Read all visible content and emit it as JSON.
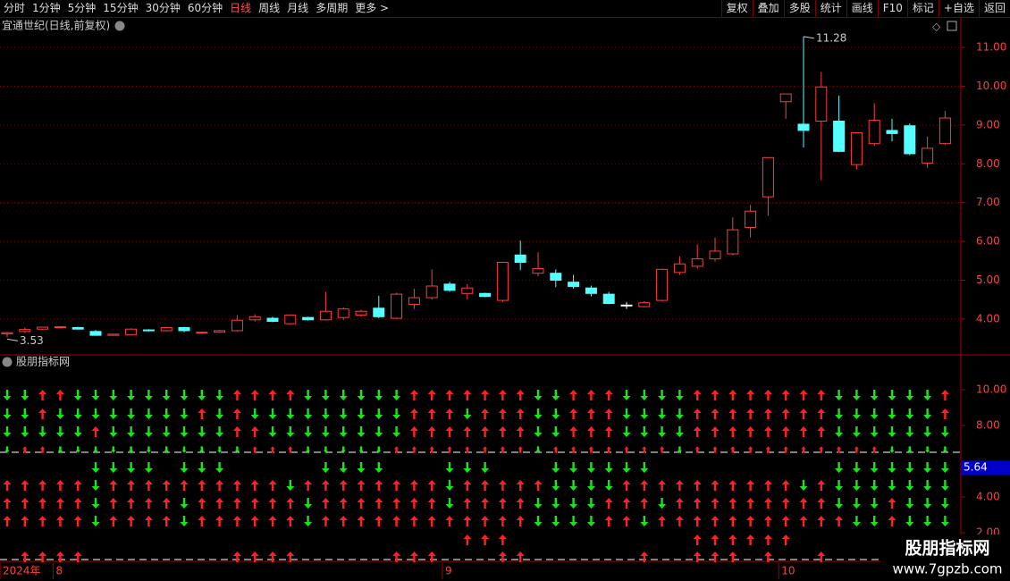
{
  "toolbar": {
    "left": [
      "分时",
      "1分钟",
      "5分钟",
      "15分钟",
      "30分钟",
      "60分钟",
      "日线",
      "周线",
      "月线",
      "多周期",
      "更多 >"
    ],
    "selected": 6,
    "right": [
      "复权",
      "叠加",
      "多股",
      "统计",
      "画线",
      "F10",
      "标记",
      "+自选",
      "返回"
    ]
  },
  "chart_data": [
    {
      "type": "candlestick",
      "title": "宜通世纪(日线,前复权)",
      "categories": [
        "2024年",
        null,
        null,
        "8",
        null,
        null,
        null,
        null,
        null,
        null,
        null,
        null,
        null,
        null,
        null,
        null,
        null,
        null,
        null,
        null,
        null,
        null,
        null,
        null,
        null,
        "9",
        null,
        null,
        null,
        null,
        null,
        null,
        null,
        null,
        null,
        null,
        null,
        null,
        null,
        null,
        null,
        null,
        null,
        null,
        "10",
        null,
        null,
        null,
        null,
        null,
        null,
        null,
        null,
        null
      ],
      "open": [
        3.62,
        3.68,
        3.74,
        3.79,
        3.78,
        3.68,
        3.58,
        3.6,
        3.72,
        3.7,
        3.78,
        3.64,
        3.66,
        3.7,
        3.98,
        4.02,
        3.88,
        4.04,
        3.98,
        4.04,
        4.1,
        4.28,
        4.02,
        4.38,
        4.55,
        4.9,
        4.66,
        4.66,
        4.48,
        5.65,
        5.18,
        5.18,
        4.95,
        4.8,
        4.64,
        4.36,
        4.32,
        4.48,
        5.2,
        5.36,
        5.55,
        5.68,
        6.36,
        7.15,
        9.6,
        9.02,
        9.1,
        9.1,
        7.98,
        8.52,
        8.86,
        8.98,
        8.02,
        8.52
      ],
      "high": [
        3.66,
        3.78,
        3.8,
        3.81,
        3.8,
        3.72,
        3.62,
        3.76,
        3.74,
        3.8,
        3.8,
        3.68,
        3.72,
        4.1,
        4.12,
        4.06,
        4.12,
        4.06,
        4.7,
        4.3,
        4.24,
        4.6,
        4.68,
        4.78,
        5.28,
        4.96,
        4.9,
        4.68,
        5.48,
        6.02,
        5.72,
        5.28,
        5.14,
        4.86,
        4.7,
        4.44,
        4.46,
        5.3,
        5.62,
        5.92,
        6.1,
        6.62,
        6.94,
        8.16,
        9.8,
        11.28,
        10.36,
        9.76,
        8.8,
        9.56,
        9.16,
        9.04,
        8.7,
        9.36
      ],
      "low": [
        3.53,
        3.64,
        3.72,
        3.77,
        3.74,
        3.58,
        3.57,
        3.58,
        3.68,
        3.68,
        3.66,
        3.62,
        3.64,
        3.68,
        3.94,
        3.92,
        3.86,
        3.96,
        3.96,
        3.98,
        4.06,
        4.02,
        4.0,
        4.26,
        4.5,
        4.7,
        4.5,
        4.56,
        4.44,
        5.26,
        5.1,
        4.82,
        4.78,
        4.58,
        4.38,
        4.26,
        4.3,
        4.46,
        5.14,
        5.3,
        5.48,
        5.64,
        6.1,
        6.66,
        9.16,
        8.42,
        7.58,
        8.3,
        7.86,
        8.46,
        8.58,
        8.22,
        7.9,
        8.48
      ],
      "close": [
        3.65,
        3.73,
        3.79,
        3.8,
        3.74,
        3.58,
        3.61,
        3.74,
        3.7,
        3.78,
        3.7,
        3.66,
        3.7,
        3.97,
        4.06,
        3.94,
        4.1,
        3.98,
        4.2,
        4.26,
        4.2,
        4.06,
        4.64,
        4.55,
        4.85,
        4.74,
        4.8,
        4.58,
        5.46,
        5.46,
        5.3,
        5.0,
        4.84,
        4.66,
        4.4,
        4.36,
        4.42,
        5.28,
        5.42,
        5.55,
        5.75,
        6.3,
        6.78,
        8.16,
        9.8,
        8.86,
        9.98,
        8.32,
        8.8,
        9.12,
        8.78,
        8.26,
        8.4,
        9.18
      ],
      "up_color": "#ff3c3c",
      "down_color": "#54ffff",
      "flat_color": "#ffffff",
      "annotations": {
        "max": "11.28",
        "min": "3.53"
      },
      "ylim": [
        3.1,
        11.76
      ],
      "yticks": [
        {
          "value": 4,
          "label": "4.00"
        },
        {
          "value": 5,
          "label": "5.00"
        },
        {
          "value": 6,
          "label": "6.00"
        },
        {
          "value": 7,
          "label": "7.00"
        },
        {
          "value": 8,
          "label": "8.00"
        },
        {
          "value": 9,
          "label": "9.00"
        },
        {
          "value": 10,
          "label": "10.00"
        },
        {
          "value": 11,
          "label": "11.00"
        }
      ],
      "grid": true
    },
    {
      "type": "signal-grid",
      "title": "股朋指标网",
      "up_color": "#ff2020",
      "down_color": "#19e619",
      "rows": [
        [
          -1,
          -1,
          1,
          1,
          -1,
          -1,
          -1,
          -1,
          -1,
          -1,
          -1,
          -1,
          -1,
          1,
          1,
          1,
          1,
          -1,
          -1,
          -1,
          -1,
          -1,
          -1,
          1,
          1,
          1,
          1,
          1,
          1,
          1,
          -1,
          -1,
          1,
          1,
          1,
          -1,
          -1,
          -1,
          -1,
          1,
          1,
          1,
          1,
          1,
          1,
          1,
          1,
          -1,
          -1,
          -1,
          -1,
          -1,
          -1,
          1
        ],
        [
          -1,
          -1,
          1,
          -1,
          -1,
          -1,
          -1,
          -1,
          -1,
          -1,
          -1,
          1,
          -1,
          1,
          -1,
          -1,
          -1,
          -1,
          -1,
          -1,
          -1,
          -1,
          -1,
          1,
          1,
          1,
          -1,
          1,
          1,
          1,
          -1,
          -1,
          1,
          1,
          1,
          -1,
          -1,
          -1,
          -1,
          1,
          1,
          1,
          1,
          1,
          1,
          1,
          1,
          -1,
          -1,
          -1,
          -1,
          -1,
          -1,
          1
        ],
        [
          -1,
          -1,
          -1,
          -1,
          -1,
          1,
          -1,
          -1,
          -1,
          -1,
          -1,
          -1,
          -1,
          1,
          1,
          -1,
          -1,
          -1,
          -1,
          -1,
          -1,
          -1,
          -1,
          1,
          1,
          1,
          1,
          1,
          1,
          1,
          -1,
          -1,
          1,
          1,
          1,
          -1,
          -1,
          -1,
          -1,
          1,
          1,
          1,
          1,
          1,
          1,
          1,
          1,
          -1,
          -1,
          -1,
          -1,
          -1,
          -1,
          -1
        ],
        [
          -1,
          1,
          1,
          -1,
          -1,
          -1,
          -1,
          -1,
          -1,
          -1,
          -1,
          -1,
          -1,
          -1,
          1,
          1,
          1,
          -1,
          -1,
          -1,
          -1,
          -1,
          1,
          1,
          1,
          1,
          1,
          1,
          1,
          1,
          -1,
          1,
          1,
          1,
          1,
          1,
          1,
          1,
          -1,
          1,
          1,
          1,
          1,
          1,
          1,
          1,
          1,
          1,
          1,
          1,
          -1,
          -1,
          -1,
          -1
        ],
        [
          0,
          0,
          0,
          0,
          0,
          -1,
          -1,
          -1,
          -1,
          0,
          -1,
          -1,
          -1,
          0,
          0,
          0,
          0,
          0,
          -1,
          -1,
          -1,
          -1,
          0,
          0,
          0,
          -1,
          -1,
          -1,
          0,
          0,
          0,
          -1,
          -1,
          -1,
          -1,
          -1,
          -1,
          0,
          0,
          0,
          0,
          0,
          0,
          0,
          0,
          0,
          0,
          -1,
          -1,
          -1,
          -1,
          -1,
          -1,
          -1
        ],
        [
          1,
          1,
          1,
          1,
          1,
          -1,
          1,
          1,
          1,
          1,
          1,
          1,
          1,
          1,
          1,
          1,
          -1,
          1,
          1,
          1,
          1,
          1,
          1,
          1,
          1,
          -1,
          1,
          1,
          1,
          1,
          1,
          -1,
          -1,
          -1,
          -1,
          1,
          1,
          1,
          1,
          1,
          1,
          1,
          1,
          1,
          1,
          -1,
          1,
          -1,
          -1,
          -1,
          -1,
          -1,
          -1,
          -1
        ],
        [
          1,
          1,
          1,
          1,
          1,
          -1,
          1,
          1,
          1,
          1,
          -1,
          1,
          1,
          1,
          1,
          1,
          1,
          -1,
          1,
          1,
          1,
          1,
          1,
          1,
          1,
          -1,
          1,
          1,
          1,
          1,
          -1,
          -1,
          -1,
          -1,
          1,
          1,
          1,
          -1,
          1,
          1,
          1,
          1,
          1,
          1,
          1,
          1,
          1,
          -1,
          -1,
          -1,
          1,
          -1,
          -1,
          -1
        ],
        [
          1,
          1,
          1,
          1,
          1,
          -1,
          1,
          1,
          1,
          1,
          -1,
          1,
          1,
          1,
          1,
          1,
          1,
          -1,
          1,
          1,
          1,
          1,
          1,
          1,
          1,
          1,
          1,
          1,
          1,
          1,
          -1,
          -1,
          -1,
          -1,
          1,
          1,
          -1,
          1,
          1,
          1,
          1,
          1,
          1,
          1,
          1,
          1,
          1,
          1,
          -1,
          -1,
          1,
          -1,
          -1,
          -1
        ],
        [
          0,
          0,
          0,
          0,
          0,
          0,
          0,
          0,
          0,
          0,
          0,
          0,
          0,
          0,
          0,
          0,
          0,
          0,
          0,
          0,
          0,
          0,
          0,
          0,
          0,
          0,
          1,
          1,
          1,
          0,
          0,
          0,
          0,
          0,
          0,
          0,
          0,
          0,
          0,
          1,
          1,
          1,
          1,
          1,
          1,
          0,
          0,
          0,
          0,
          0,
          0,
          0,
          0,
          0
        ],
        [
          0,
          1,
          1,
          1,
          1,
          0,
          0,
          0,
          0,
          0,
          0,
          0,
          0,
          1,
          1,
          1,
          1,
          0,
          0,
          0,
          0,
          0,
          1,
          1,
          1,
          0,
          0,
          0,
          1,
          1,
          0,
          0,
          0,
          0,
          0,
          0,
          1,
          0,
          0,
          1,
          1,
          1,
          0,
          1,
          0,
          0,
          1,
          0,
          0,
          0,
          0,
          0,
          0,
          0
        ]
      ],
      "ylim": [
        0.4,
        11.95
      ],
      "yticks": [
        {
          "value": 2,
          "label": "2.00"
        },
        {
          "value": 4,
          "label": "4.00"
        },
        {
          "value": 8,
          "label": "8.00"
        },
        {
          "value": 10,
          "label": "10.00"
        }
      ],
      "last_value": 5.64
    }
  ],
  "watermark": {
    "title": "股朋指标网",
    "url": "www.7gpzb.com"
  }
}
